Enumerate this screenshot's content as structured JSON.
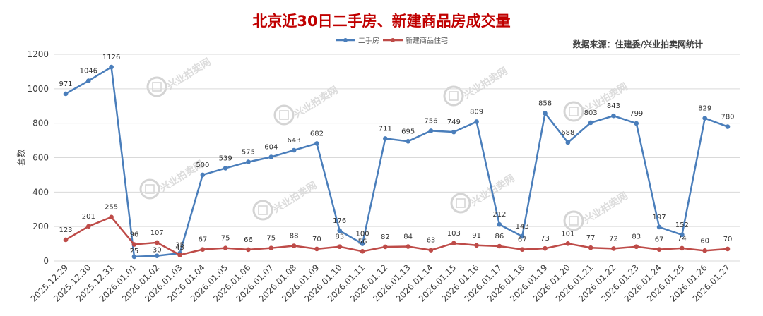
{
  "title": "北京近30日二手房、新建商品房成交量",
  "source": "数据来源：住建委/兴业拍卖网统计",
  "watermark": "兴业拍卖网",
  "colors": {
    "series1": "#4a7ebb",
    "series2": "#be4b48",
    "grid": "#d9d9d9",
    "title": "#c00000"
  },
  "chart_data": {
    "type": "line",
    "title": "北京近30日二手房、新建商品房成交量",
    "xlabel": "",
    "ylabel": "套数",
    "ylim": [
      0,
      1200
    ],
    "yticks": [
      0,
      200,
      400,
      600,
      800,
      1000,
      1200
    ],
    "grid": true,
    "legend_position": "top",
    "categories": [
      "2025.12.29",
      "2025.12.30",
      "2025.12.31",
      "2026.01.01",
      "2026.01.02",
      "2026.01.03",
      "2026.01.04",
      "2026.01.05",
      "2026.01.06",
      "2026.01.07",
      "2026.01.08",
      "2026.01.09",
      "2026.01.10",
      "2026.01.11",
      "2026.01.12",
      "2026.01.13",
      "2026.01.14",
      "2026.01.15",
      "2026.01.16",
      "2026.01.17",
      "2026.01.18",
      "2026.01.19",
      "2026.01.20",
      "2026.01.21",
      "2026.01.22",
      "2026.01.23",
      "2026.01.24",
      "2026.01.25",
      "2026.01.26",
      "2026.01.27"
    ],
    "series": [
      {
        "name": "二手房",
        "values": [
          971,
          1046,
          1126,
          25,
          30,
          45,
          500,
          539,
          575,
          604,
          643,
          682,
          176,
          100,
          711,
          695,
          756,
          749,
          809,
          212,
          143,
          858,
          688,
          803,
          843,
          799,
          197,
          152,
          829,
          780
        ]
      },
      {
        "name": "新建商品住宅",
        "values": [
          123,
          201,
          255,
          96,
          107,
          35,
          67,
          75,
          66,
          75,
          88,
          70,
          83,
          56,
          82,
          84,
          63,
          103,
          91,
          86,
          67,
          73,
          101,
          77,
          72,
          83,
          67,
          74,
          60,
          70
        ]
      }
    ]
  }
}
